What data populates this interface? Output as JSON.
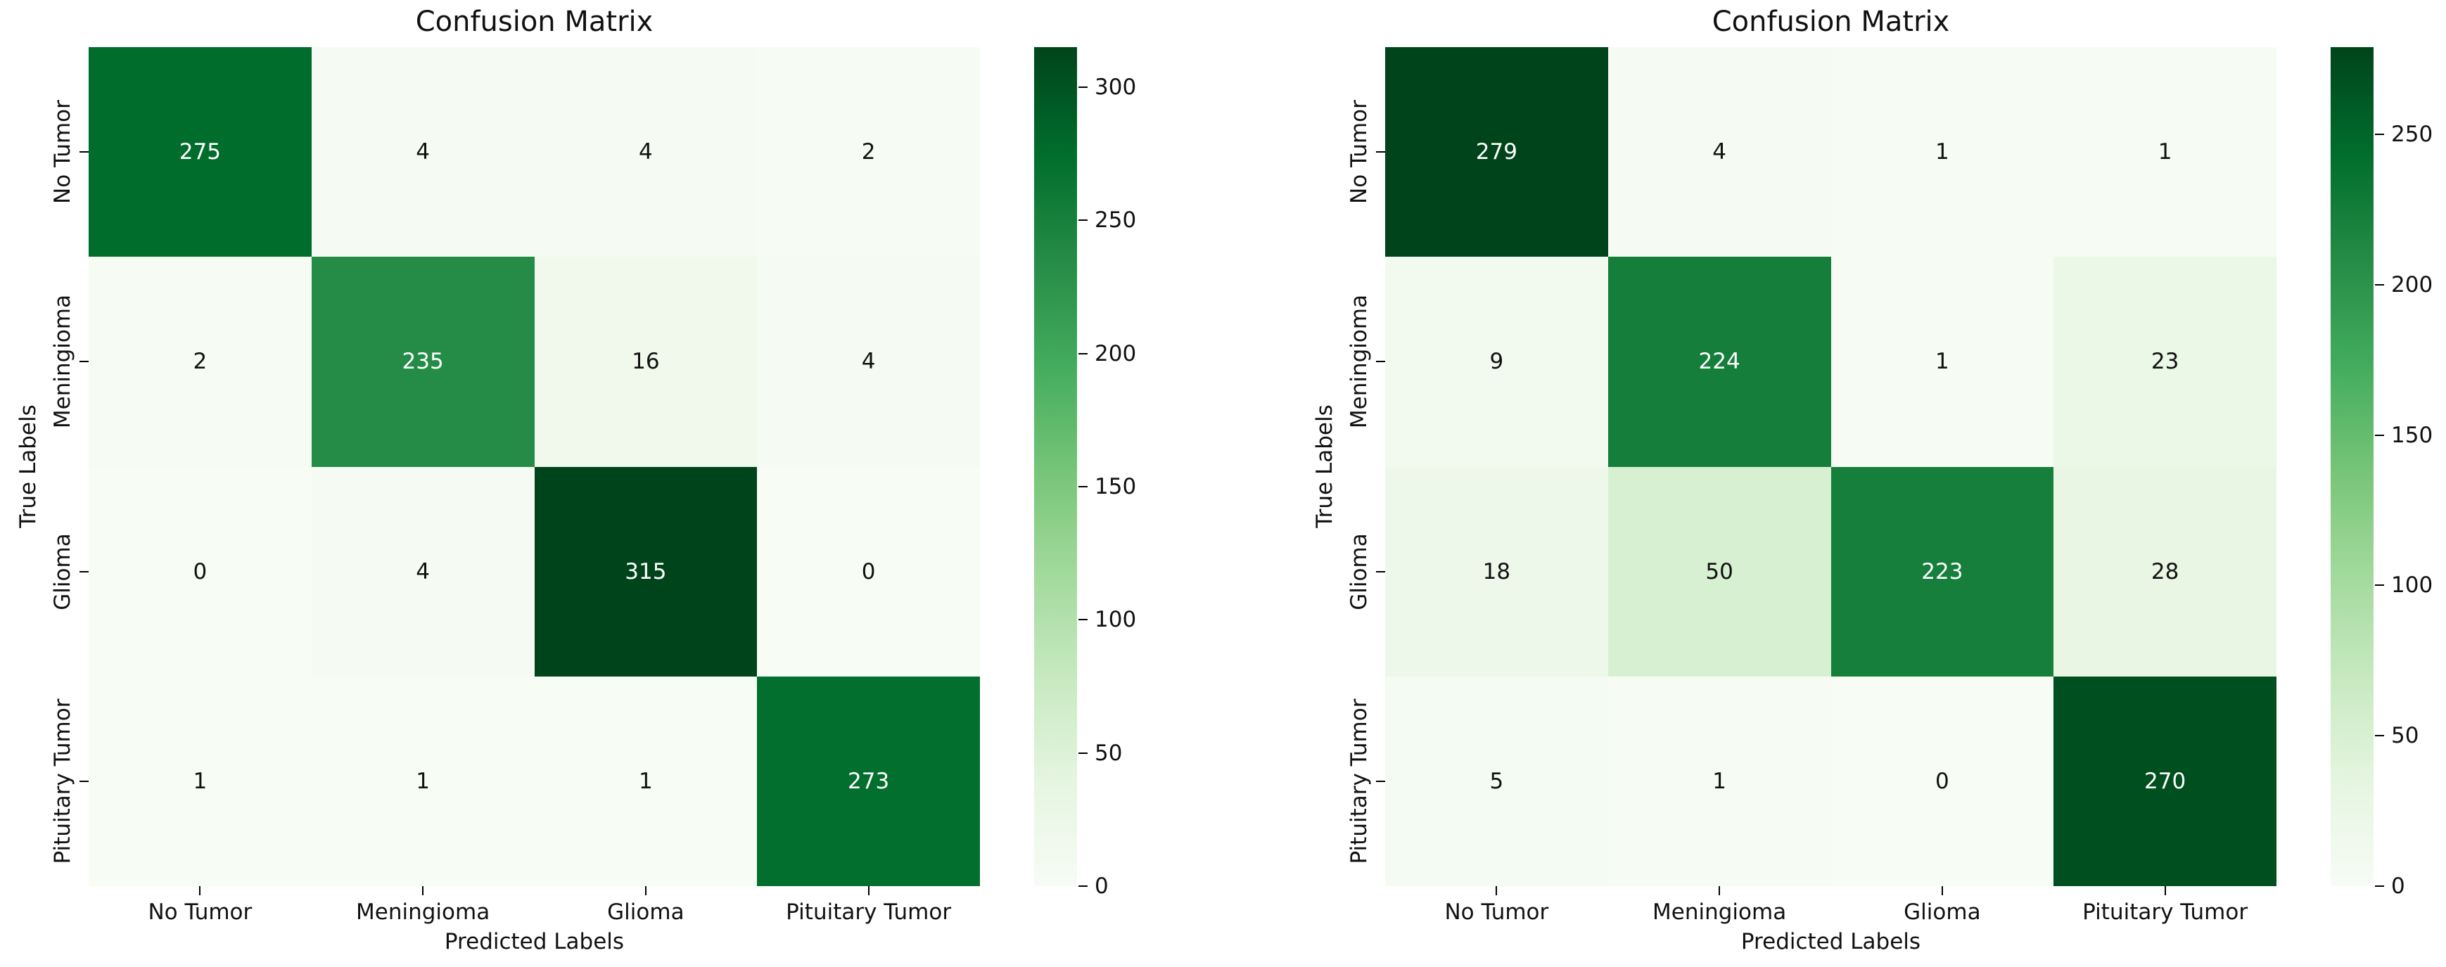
{
  "colormap": {
    "name": "Greens",
    "stops": [
      "#f7fcf5",
      "#e5f5e0",
      "#c7e9c0",
      "#a1d99b",
      "#74c476",
      "#41ab5d",
      "#238b45",
      "#006d2c",
      "#00441b"
    ],
    "annotation_dark_text": "#111111",
    "annotation_light_text": "#ffffff"
  },
  "chart_data": [
    {
      "type": "heatmap",
      "title": "Confusion Matrix",
      "xlabel": "Predicted Labels",
      "ylabel": "True Labels",
      "x_categories": [
        "No Tumor",
        "Meningioma",
        "Glioma",
        "Pituitary Tumor"
      ],
      "y_categories": [
        "No Tumor",
        "Meningioma",
        "Glioma",
        "Pituitary Tumor"
      ],
      "values": [
        [
          275,
          4,
          4,
          2
        ],
        [
          2,
          235,
          16,
          4
        ],
        [
          0,
          4,
          315,
          0
        ],
        [
          1,
          1,
          1,
          273
        ]
      ],
      "vmin": 0,
      "vmax": 315,
      "colorbar_ticks": [
        0,
        50,
        100,
        150,
        200,
        250,
        300
      ],
      "legend_position": "right-colorbar",
      "grid": false
    },
    {
      "type": "heatmap",
      "title": "Confusion Matrix",
      "xlabel": "Predicted Labels",
      "ylabel": "True Labels",
      "x_categories": [
        "No Tumor",
        "Meningioma",
        "Glioma",
        "Pituitary Tumor"
      ],
      "y_categories": [
        "No Tumor",
        "Meningioma",
        "Glioma",
        "Pituitary Tumor"
      ],
      "values": [
        [
          279,
          4,
          1,
          1
        ],
        [
          9,
          224,
          1,
          23
        ],
        [
          18,
          50,
          223,
          28
        ],
        [
          5,
          1,
          0,
          270
        ]
      ],
      "vmin": 0,
      "vmax": 279,
      "colorbar_ticks": [
        0,
        50,
        100,
        150,
        200,
        250
      ],
      "legend_position": "right-colorbar",
      "grid": false
    }
  ]
}
